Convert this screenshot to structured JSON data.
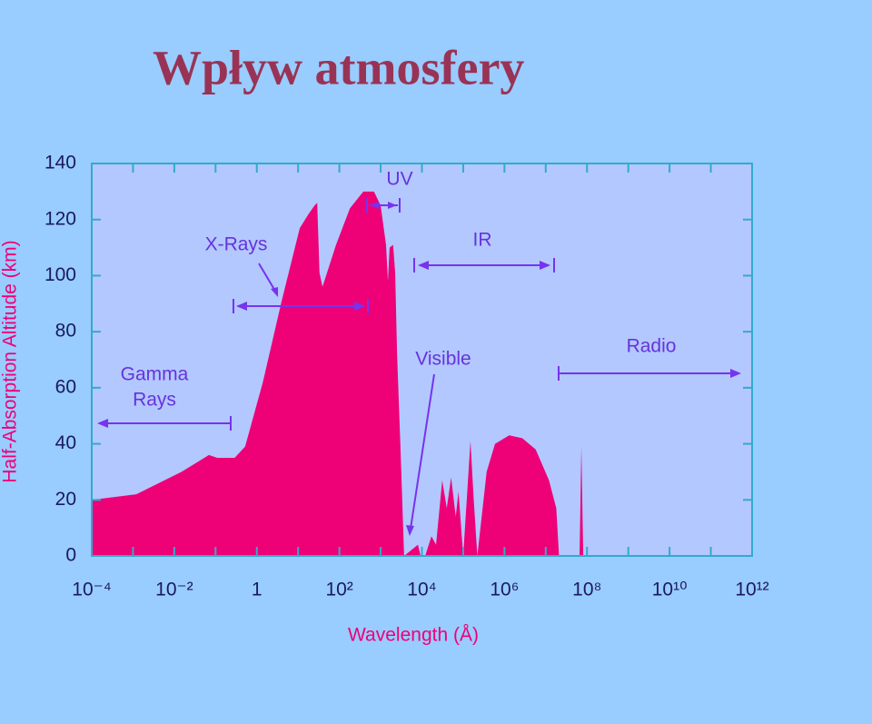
{
  "title": "Wpływ atmosfery",
  "chart_data": {
    "type": "area",
    "xlabel": "Wavelength (Å)",
    "ylabel": "Half-Absorption Altitude (km)",
    "xscale": "log",
    "color": "#ee0077",
    "x": [
      0.0001,
      0.0012,
      0.015,
      0.069,
      0.11,
      0.29,
      0.52,
      1.4,
      4,
      11,
      18,
      25,
      29,
      33,
      39,
      83,
      180,
      380,
      690,
      1000,
      1350,
      1500,
      1650,
      2000,
      2250,
      2500,
      3000,
      3700,
      8000,
      9300,
      12000,
      17000,
      22000,
      31000,
      40000,
      51000,
      66000,
      77000,
      100000,
      150000,
      180000,
      220000,
      370000,
      590000,
      1300000,
      2700000,
      5700000,
      12000000,
      18000000,
      21000000,
      66000000,
      73000000,
      81000000,
      1000000000000
    ],
    "values": [
      20,
      22,
      30,
      36,
      35,
      35,
      39,
      62,
      91,
      117,
      122,
      125,
      126,
      101,
      96,
      111,
      124,
      130,
      130,
      125,
      111,
      98,
      110,
      111,
      101,
      72,
      40,
      0,
      4,
      0,
      0,
      7,
      4,
      27,
      17,
      28,
      14,
      23,
      0,
      41,
      20,
      0,
      30,
      40,
      43,
      42,
      38,
      27,
      17,
      0,
      0,
      39,
      0,
      0
    ],
    "xlim": [
      0.0001,
      1000000000000
    ],
    "ylim": [
      0,
      140
    ],
    "xticks": [
      {
        "value": 0.0001,
        "label": "10⁻⁴"
      },
      {
        "value": 0.01,
        "label": "10⁻²"
      },
      1,
      {
        "value": 100,
        "label": "10²"
      },
      {
        "value": 10000,
        "label": "10⁴"
      },
      {
        "value": 1000000,
        "label": "10⁶"
      },
      {
        "value": 100000000,
        "label": "10⁸"
      },
      {
        "value": 10000000000,
        "label": "10¹⁰"
      },
      {
        "value": 1000000000000,
        "label": "10¹²"
      }
    ],
    "yticks": [
      0,
      20,
      40,
      60,
      80,
      100,
      120,
      140
    ],
    "annotations": [
      {
        "lines": [
          "Gamma",
          "Rays"
        ]
      },
      {
        "lines": [
          "X-Rays"
        ]
      },
      {
        "lines": [
          "UV"
        ]
      },
      {
        "lines": [
          "Visible"
        ]
      },
      {
        "lines": [
          "IR"
        ]
      },
      {
        "lines": [
          "Radio"
        ]
      }
    ]
  }
}
